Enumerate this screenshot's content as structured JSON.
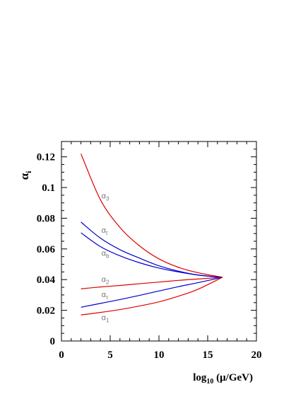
{
  "chart_data": {
    "type": "line",
    "title": "",
    "xlabel": "log10(μ/GeV)",
    "ylabel": "αi",
    "xlim": [
      0,
      20
    ],
    "ylim": [
      0,
      0.13
    ],
    "x_ticks": [
      0,
      5,
      10,
      15,
      20
    ],
    "x_tick_labels": [
      "0",
      "5",
      "10",
      "15",
      "20"
    ],
    "y_ticks": [
      0,
      0.02,
      0.04,
      0.06,
      0.08,
      0.1,
      0.12
    ],
    "y_tick_labels": [
      "0",
      "0.02",
      "0.04",
      "0.06",
      "0.08",
      "0.1",
      "0.12"
    ],
    "grid": false,
    "legend": "none (curves labeled inline)",
    "colors": {
      "red": "#e00000",
      "blue": "#0000cc",
      "label_gray": "#777777"
    },
    "series": [
      {
        "label_symbol": "α",
        "label_sub": "3",
        "color": "red",
        "x": [
          2,
          4,
          6,
          8,
          10,
          12,
          14,
          16.5
        ],
        "y": [
          0.122,
          0.092,
          0.074,
          0.062,
          0.0535,
          0.048,
          0.0445,
          0.0415
        ],
        "label_at": [
          4.1,
          0.093
        ]
      },
      {
        "label_symbol": "α",
        "label_sub": "t",
        "color": "blue",
        "x": [
          2,
          4,
          6,
          8,
          10,
          12,
          14,
          16.5
        ],
        "y": [
          0.0775,
          0.067,
          0.0595,
          0.054,
          0.049,
          0.0455,
          0.043,
          0.0415
        ],
        "label_at": [
          4.1,
          0.0705
        ]
      },
      {
        "label_symbol": "α",
        "label_sub": "b",
        "color": "blue",
        "x": [
          2,
          4,
          6,
          8,
          10,
          12,
          14,
          16.5
        ],
        "y": [
          0.0705,
          0.0615,
          0.0555,
          0.051,
          0.0475,
          0.045,
          0.043,
          0.0415
        ],
        "label_at": [
          4.1,
          0.0555
        ]
      },
      {
        "label_symbol": "α",
        "label_sub": "2",
        "color": "red",
        "x": [
          2,
          4,
          6,
          8,
          10,
          12,
          14,
          16.5
        ],
        "y": [
          0.034,
          0.0352,
          0.0362,
          0.0373,
          0.0384,
          0.0395,
          0.0404,
          0.0415
        ],
        "label_at": [
          4.1,
          0.0385
        ]
      },
      {
        "label_symbol": "α",
        "label_sub": "τ",
        "color": "blue",
        "x": [
          2,
          4,
          6,
          8,
          10,
          12,
          14,
          16.5
        ],
        "y": [
          0.022,
          0.0245,
          0.027,
          0.0297,
          0.0326,
          0.0354,
          0.038,
          0.0415
        ],
        "label_at": [
          4.1,
          0.0285
        ]
      },
      {
        "label_symbol": "α",
        "label_sub": "1",
        "color": "red",
        "x": [
          2,
          4,
          6,
          8,
          10,
          12,
          14,
          16.5
        ],
        "y": [
          0.017,
          0.0186,
          0.0205,
          0.0228,
          0.0255,
          0.0292,
          0.0337,
          0.0415
        ],
        "label_at": [
          4.1,
          0.0135
        ]
      }
    ]
  }
}
